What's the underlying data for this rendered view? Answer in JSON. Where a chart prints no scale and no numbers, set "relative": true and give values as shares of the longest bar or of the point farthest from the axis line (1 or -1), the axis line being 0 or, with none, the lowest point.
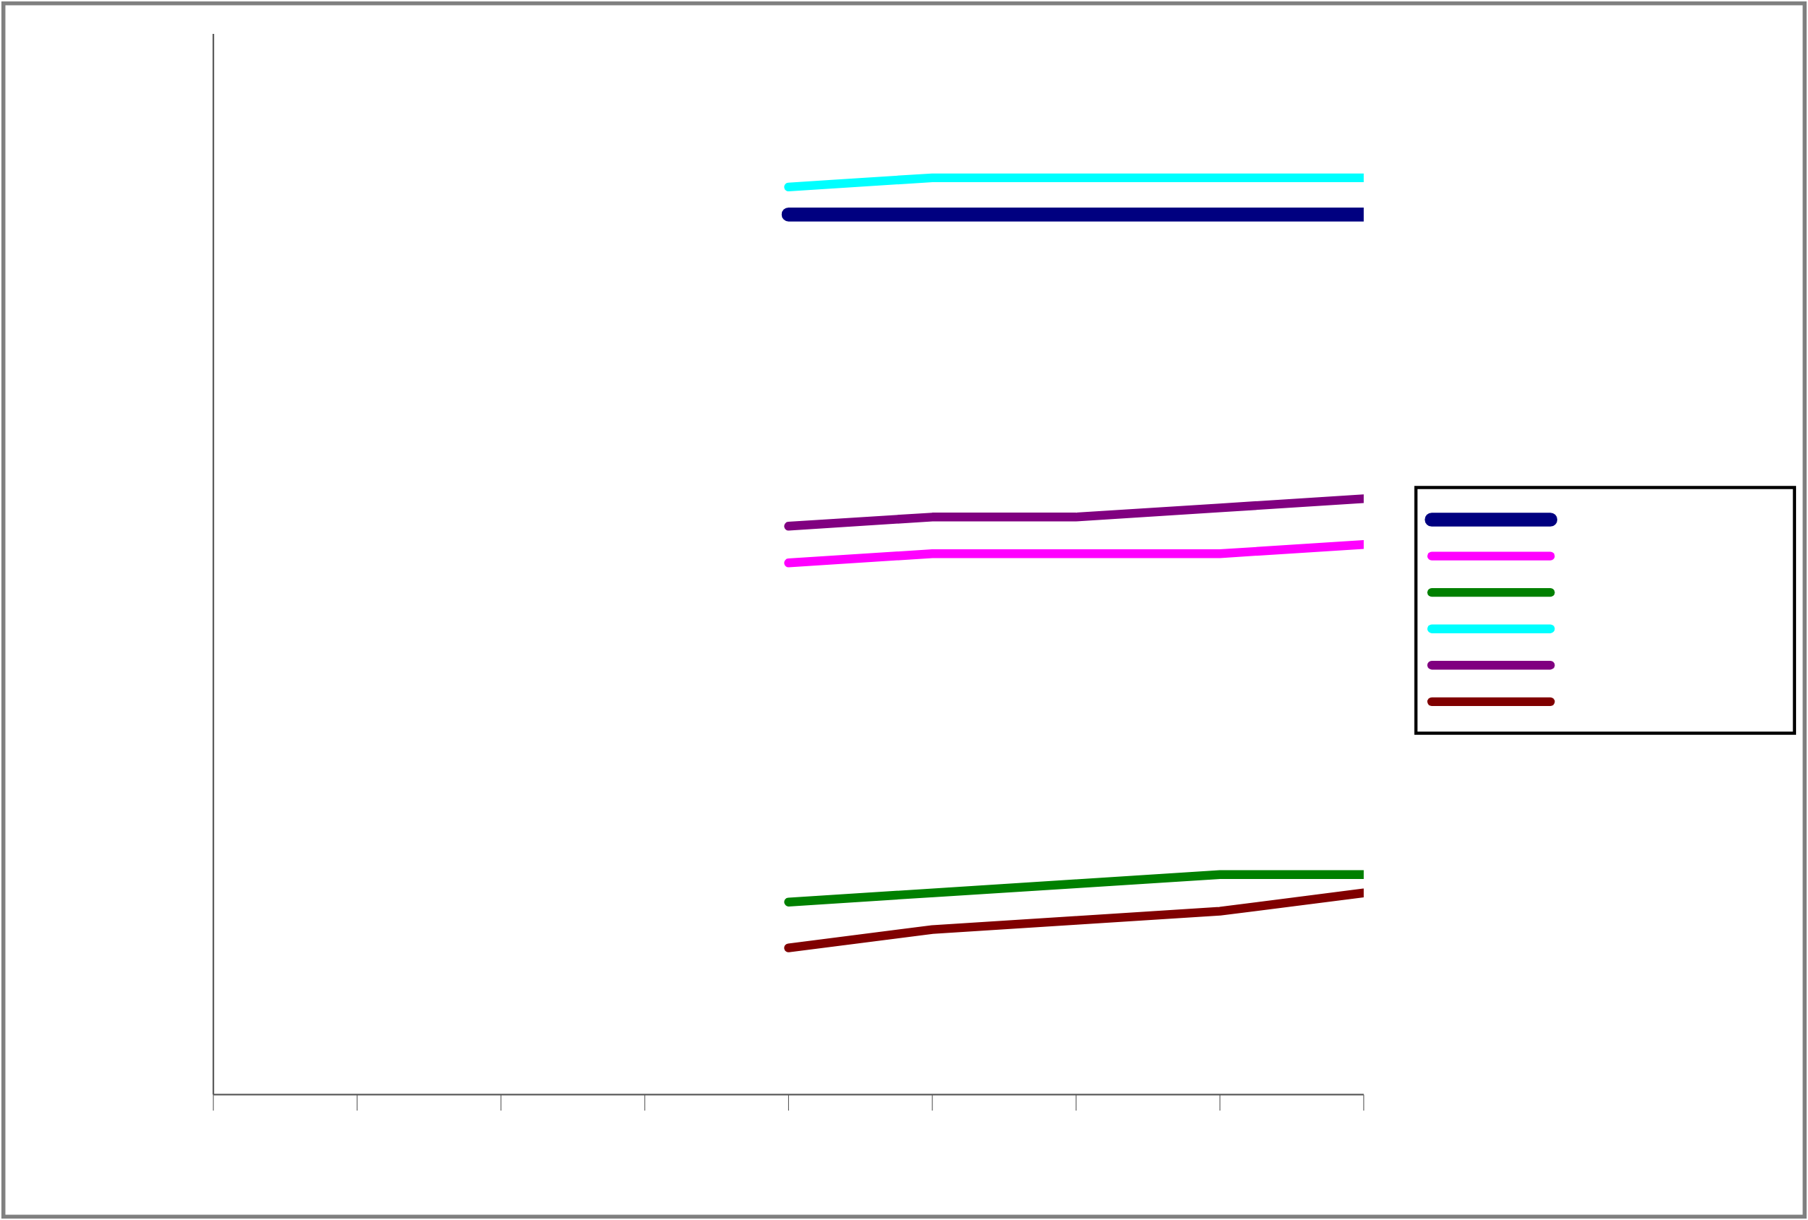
{
  "chart_data": {
    "type": "line",
    "relative": true,
    "categories": [
      null,
      null,
      null,
      null,
      null,
      null,
      null,
      null,
      null
    ],
    "series": [
      {
        "color": "#000080",
        "values": [
          null,
          null,
          null,
          null,
          0.96,
          0.96,
          0.96,
          0.96,
          0.96
        ]
      },
      {
        "color": "#ff00ff",
        "values": [
          null,
          null,
          null,
          null,
          0.58,
          0.59,
          0.59,
          0.59,
          0.6
        ]
      },
      {
        "color": "#008000",
        "values": [
          null,
          null,
          null,
          null,
          0.21,
          0.22,
          0.23,
          0.24,
          0.24
        ]
      },
      {
        "color": "#00ffff",
        "values": [
          null,
          null,
          null,
          null,
          0.99,
          1.0,
          1.0,
          1.0,
          1.0
        ]
      },
      {
        "color": "#800080",
        "values": [
          null,
          null,
          null,
          null,
          0.62,
          0.63,
          0.63,
          0.64,
          0.65
        ]
      },
      {
        "color": "#800000",
        "values": [
          null,
          null,
          null,
          null,
          0.16,
          0.18,
          0.19,
          0.2,
          0.22
        ]
      }
    ]
  }
}
